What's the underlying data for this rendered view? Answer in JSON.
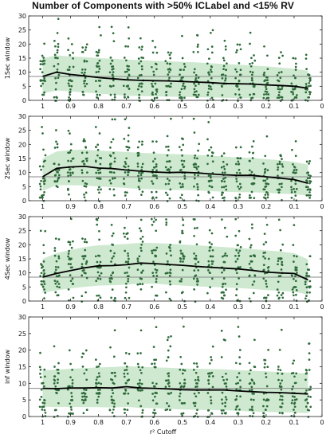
{
  "title": "Number of Components with >50% ICLabel and <15% RV",
  "xlabel_shared": "r² Cutoff",
  "chart_data": [
    {
      "type": "scatter",
      "ylabel": "1Sec window",
      "x": [
        1,
        0.95,
        0.9,
        0.85,
        0.8,
        0.75,
        0.7,
        0.65,
        0.6,
        0.55,
        0.5,
        0.45,
        0.4,
        0.35,
        0.3,
        0.25,
        0.2,
        0.15,
        0.1,
        0.05
      ],
      "mean": [
        8.5,
        10,
        9.2,
        8.7,
        8.1,
        7.7,
        7.3,
        7.1,
        7.0,
        6.9,
        6.7,
        6.5,
        6.3,
        6.0,
        5.9,
        5.8,
        5.5,
        5.3,
        5.0,
        4.3
      ],
      "band_upper": [
        15,
        16,
        15.6,
        15.4,
        15,
        14.8,
        14.5,
        14.3,
        14.1,
        13.9,
        13.7,
        13.5,
        13.2,
        12.9,
        12.7,
        12.4,
        12.1,
        11.7,
        11.2,
        10.5
      ],
      "band_lower": [
        2.5,
        3.5,
        3.2,
        2.8,
        2.4,
        2.0,
        1.6,
        1.5,
        1.4,
        1.3,
        1.2,
        1.1,
        1.0,
        0.9,
        0.8,
        0.7,
        0.6,
        0.5,
        0.4,
        0.3
      ],
      "reference_line": 8.5,
      "xlim": [
        1.05,
        0
      ],
      "ylim": [
        0,
        30
      ],
      "xticks": [
        "1",
        "0.9",
        "0.8",
        "0.7",
        "0.6",
        "0.5",
        "0.4",
        "0.3",
        "0.2",
        "0.1",
        "0"
      ],
      "xtick_values": [
        1,
        0.9,
        0.8,
        0.7,
        0.6,
        0.5,
        0.4,
        0.3,
        0.2,
        0.1,
        0
      ],
      "yticks": [
        "0",
        "5",
        "10",
        "15",
        "20",
        "25",
        "30"
      ],
      "ytick_values": [
        0,
        5,
        10,
        15,
        20,
        25,
        30
      ]
    },
    {
      "type": "scatter",
      "ylabel": "2Sec window",
      "x": [
        1,
        0.95,
        0.9,
        0.85,
        0.8,
        0.75,
        0.7,
        0.65,
        0.6,
        0.55,
        0.5,
        0.45,
        0.4,
        0.35,
        0.3,
        0.25,
        0.2,
        0.15,
        0.1,
        0.05
      ],
      "mean": [
        8.5,
        11.5,
        12.0,
        12.2,
        11.6,
        11.4,
        10.9,
        10.5,
        10.2,
        10.0,
        10.1,
        9.9,
        9.5,
        9.2,
        9.0,
        9.0,
        8.5,
        8.0,
        7.5,
        6.2
      ],
      "band_upper": [
        15,
        17.5,
        18,
        18.2,
        17.8,
        17.6,
        17.3,
        17,
        16.8,
        16.6,
        16.5,
        16.3,
        16,
        15.7,
        15.4,
        15.2,
        14.8,
        14.4,
        13.8,
        12.8
      ],
      "band_lower": [
        3.5,
        5.5,
        5.5,
        5.4,
        5.0,
        4.8,
        4.5,
        4.2,
        4.0,
        3.8,
        3.8,
        3.6,
        3.4,
        3.2,
        3.0,
        3.0,
        2.8,
        2.5,
        2.3,
        1.8
      ],
      "reference_line": 8.5,
      "xlim": [
        1.05,
        0
      ],
      "ylim": [
        0,
        30
      ],
      "xticks": [
        "1",
        "0.9",
        "0.8",
        "0.7",
        "0.6",
        "0.5",
        "0.4",
        "0.3",
        "0.2",
        "0.1",
        "0"
      ],
      "xtick_values": [
        1,
        0.9,
        0.8,
        0.7,
        0.6,
        0.5,
        0.4,
        0.3,
        0.2,
        0.1,
        0
      ],
      "yticks": [
        "0",
        "5",
        "10",
        "15",
        "20",
        "25",
        "30"
      ],
      "ytick_values": [
        0,
        5,
        10,
        15,
        20,
        25,
        30
      ]
    },
    {
      "type": "scatter",
      "ylabel": "4Sec window",
      "x": [
        1,
        0.95,
        0.9,
        0.85,
        0.8,
        0.75,
        0.7,
        0.65,
        0.6,
        0.55,
        0.5,
        0.45,
        0.4,
        0.35,
        0.3,
        0.25,
        0.2,
        0.15,
        0.1,
        0.05
      ],
      "mean": [
        8.5,
        9.8,
        10.8,
        11.8,
        12.5,
        12.6,
        12.9,
        13.5,
        13.3,
        13.0,
        12.7,
        12.3,
        12.0,
        11.7,
        11.4,
        10.9,
        10.3,
        10.0,
        9.8,
        7.5
      ],
      "band_upper": [
        15,
        17,
        18.2,
        19.2,
        19.8,
        20,
        20.3,
        20.7,
        20.6,
        20.4,
        20.1,
        19.8,
        19.5,
        19.2,
        18.9,
        18.5,
        18,
        17.6,
        17,
        14.8
      ],
      "band_lower": [
        3.0,
        3.8,
        4.5,
        5.0,
        5.5,
        5.6,
        5.8,
        6.2,
        6.1,
        5.8,
        5.5,
        5.2,
        5.0,
        4.8,
        4.6,
        4.3,
        3.9,
        3.6,
        3.3,
        2.3
      ],
      "reference_line": 8.5,
      "xlim": [
        1.05,
        0
      ],
      "ylim": [
        0,
        30
      ],
      "xticks": [
        "1",
        "0.9",
        "0.8",
        "0.7",
        "0.6",
        "0.5",
        "0.4",
        "0.3",
        "0.2",
        "0.1",
        "0"
      ],
      "xtick_values": [
        1,
        0.9,
        0.8,
        0.7,
        0.6,
        0.5,
        0.4,
        0.3,
        0.2,
        0.1,
        0
      ],
      "yticks": [
        "0",
        "5",
        "10",
        "15",
        "20",
        "25",
        "30"
      ],
      "ytick_values": [
        0,
        5,
        10,
        15,
        20,
        25,
        30
      ]
    },
    {
      "type": "scatter",
      "ylabel": "inf window",
      "x": [
        1,
        0.95,
        0.9,
        0.85,
        0.8,
        0.75,
        0.7,
        0.65,
        0.6,
        0.55,
        0.5,
        0.45,
        0.4,
        0.35,
        0.3,
        0.25,
        0.2,
        0.15,
        0.1,
        0.05
      ],
      "mean": [
        8.5,
        8.4,
        8.6,
        8.6,
        8.7,
        8.6,
        9.0,
        8.6,
        8.5,
        8.3,
        8.1,
        8.0,
        8.0,
        8.0,
        7.7,
        7.5,
        7.3,
        7.2,
        7.0,
        6.8
      ],
      "band_upper": [
        14,
        14.1,
        14.4,
        14.6,
        14.8,
        14.9,
        15.2,
        15,
        14.8,
        14.7,
        14.5,
        14.4,
        14.3,
        14.2,
        14,
        13.8,
        13.6,
        13.4,
        13.2,
        13
      ],
      "band_lower": [
        3.0,
        2.8,
        2.9,
        2.8,
        2.8,
        2.7,
        2.9,
        2.6,
        2.5,
        2.3,
        2.1,
        2.0,
        2.0,
        1.9,
        1.7,
        1.5,
        1.4,
        1.3,
        1.2,
        1.0
      ],
      "reference_line": 8.5,
      "xlim": [
        1.05,
        0
      ],
      "ylim": [
        0,
        30
      ],
      "xticks": [
        "1",
        "0.9",
        "0.8",
        "0.7",
        "0.6",
        "0.5",
        "0.4",
        "0.3",
        "0.2",
        "0.1",
        "0"
      ],
      "xtick_values": [
        1,
        0.9,
        0.8,
        0.7,
        0.6,
        0.5,
        0.4,
        0.3,
        0.2,
        0.1,
        0
      ],
      "yticks": [
        "0",
        "5",
        "10",
        "15",
        "20",
        "25",
        "30"
      ],
      "ytick_values": [
        0,
        5,
        10,
        15,
        20,
        25,
        30
      ]
    }
  ],
  "colors": {
    "points": "#2e6b3a",
    "band": "#cfe9d1",
    "mean_line": "#000000",
    "reference_line": "#8a8a8a",
    "axes": "#222222"
  }
}
